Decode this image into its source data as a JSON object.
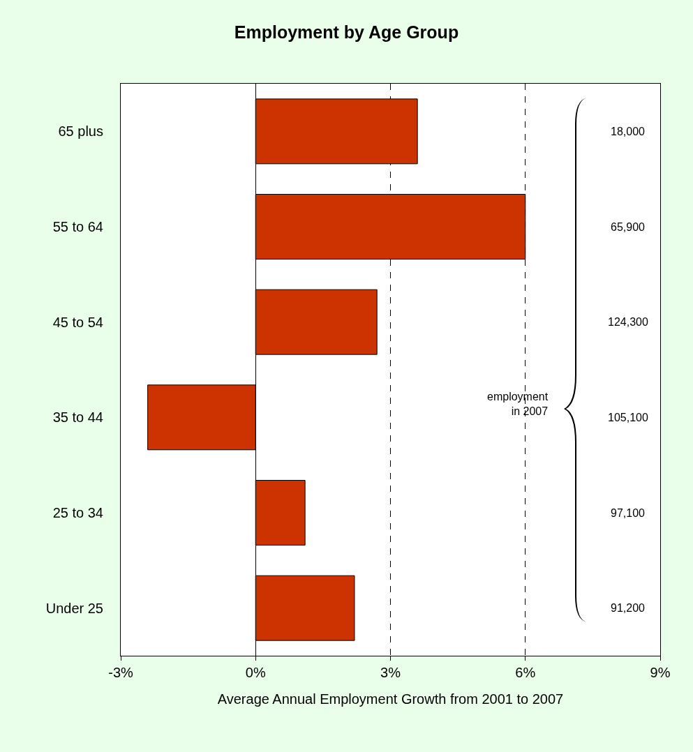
{
  "chart_data": {
    "type": "bar",
    "orientation": "horizontal",
    "title": "Employment by Age Group",
    "xlabel": "Average Annual Employment Growth from 2001 to 2007",
    "categories": [
      "65 plus",
      "55 to 64",
      "45 to 54",
      "35 to 44",
      "25 to 34",
      "Under 25"
    ],
    "values": [
      3.6,
      6.0,
      2.7,
      -2.4,
      1.1,
      2.2
    ],
    "color": "#cc3300",
    "xlim": [
      -3,
      9
    ],
    "xticks": [
      {
        "value": -3,
        "label": "-3%"
      },
      {
        "value": 0,
        "label": "0%"
      },
      {
        "value": 3,
        "label": "3%"
      },
      {
        "value": 6,
        "label": "6%"
      },
      {
        "value": 9,
        "label": "9%"
      }
    ],
    "grid": "x",
    "annotations": [
      "18,000",
      "65,900",
      "124,300",
      "105,100",
      "97,100",
      "91,200",
      "employment\nin 2007"
    ]
  }
}
